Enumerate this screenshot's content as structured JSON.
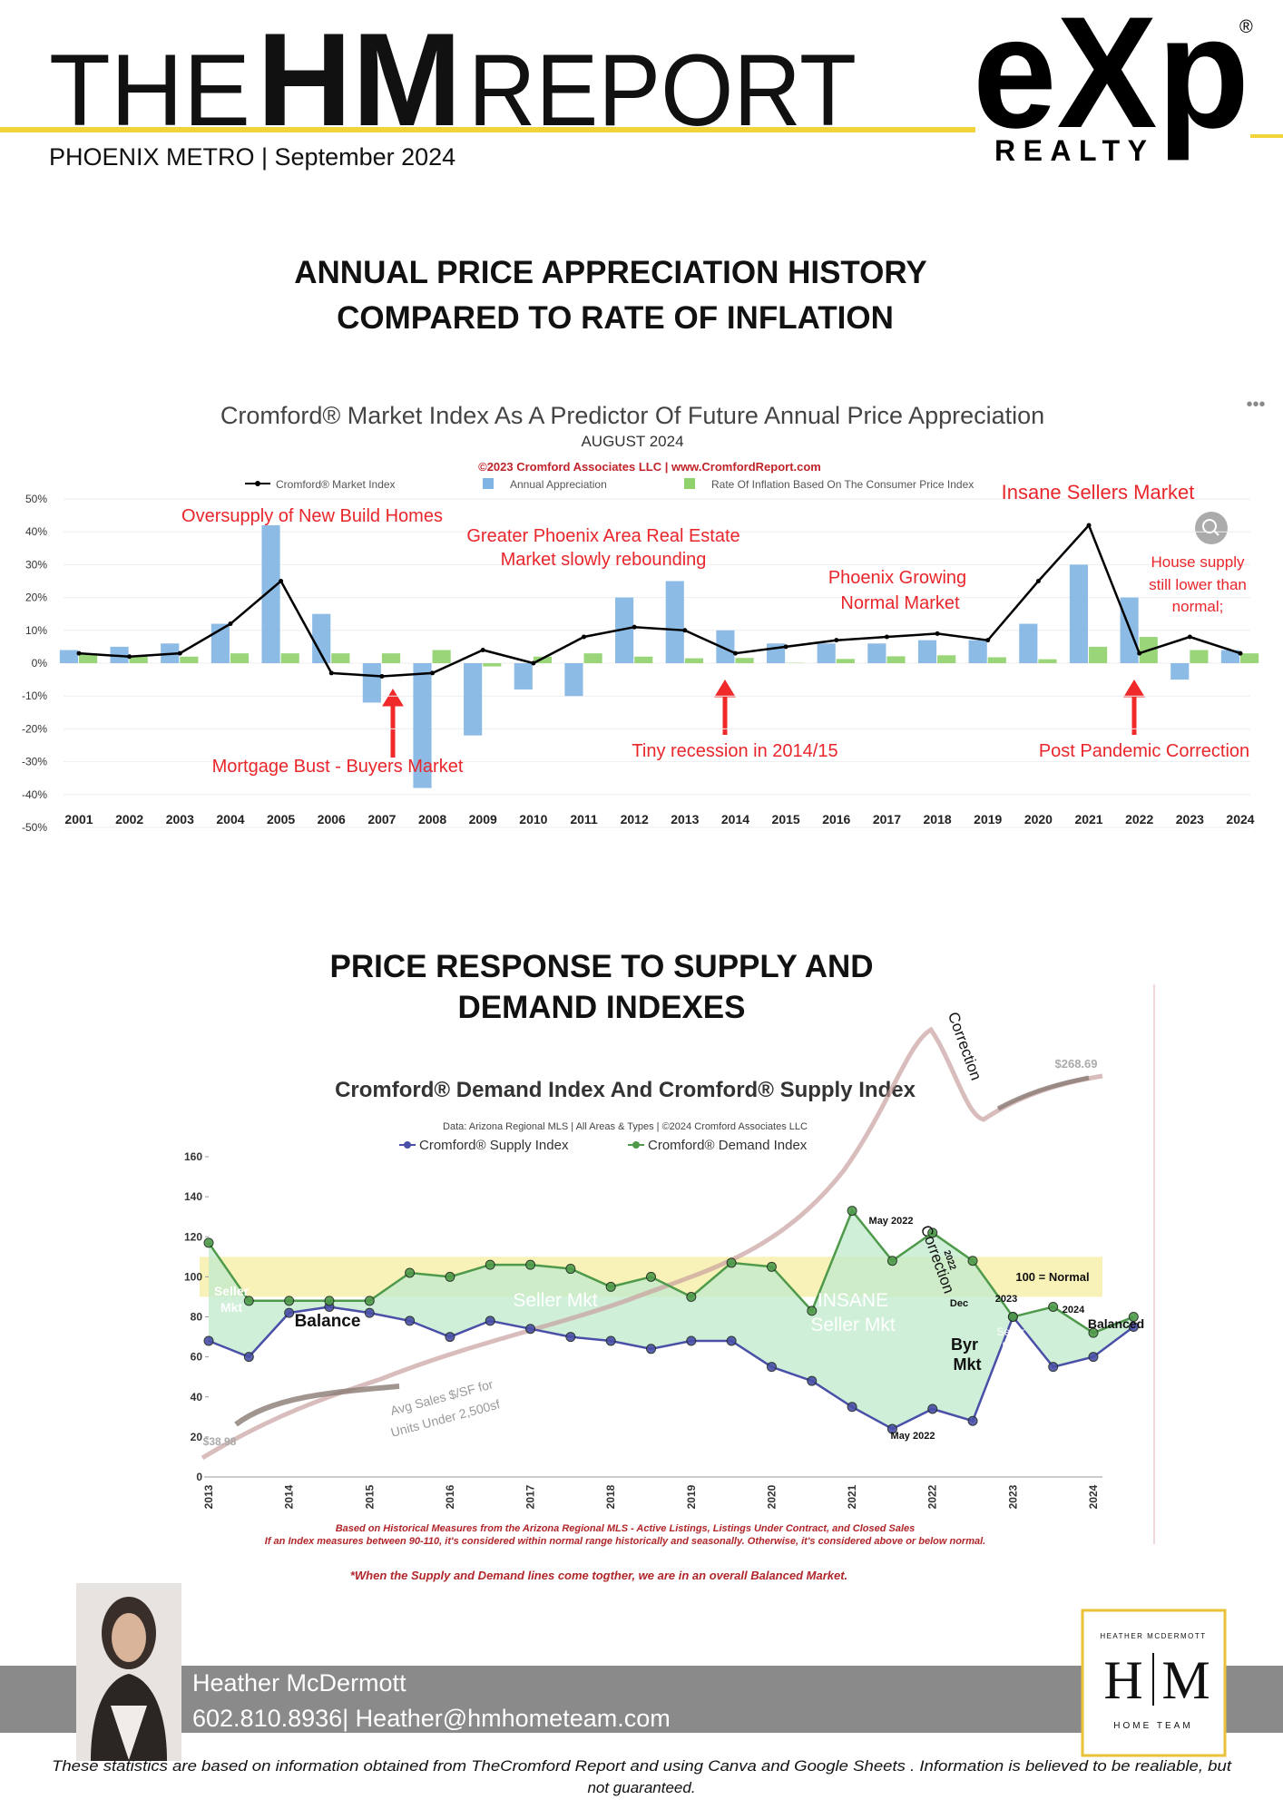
{
  "header": {
    "title_left": "THE",
    "title_bold": "HM",
    "title_right": "REPORT",
    "subtitle": "PHOENIX METRO | September 2024",
    "logo": "eXp",
    "logo_registered": "®",
    "logo_sub": "REALTY"
  },
  "section1": {
    "heading": [
      "ANNUAL PRICE APPRECIATION HISTORY",
      "COMPARED TO RATE OF INFLATION"
    ]
  },
  "section2": {
    "heading": [
      "PRICE RESPONSE TO SUPPLY AND",
      "DEMAND INDEXES"
    ]
  },
  "chart_data": [
    {
      "type": "combo",
      "title": "Cromford® Market Index As A Predictor Of Future Annual Price Appreciation",
      "subtitle": "AUGUST 2024",
      "source": "©2023 Cromford Associates LLC | www.CromfordReport.com",
      "categories": [
        "2001",
        "2002",
        "2003",
        "2004",
        "2005",
        "2006",
        "2007",
        "2008",
        "2009",
        "2010",
        "2011",
        "2012",
        "2013",
        "2014",
        "2015",
        "2016",
        "2017",
        "2018",
        "2019",
        "2020",
        "2021",
        "2022",
        "2023",
        "2024"
      ],
      "series": [
        {
          "name": "Cromford® Market Index",
          "color": "#000000",
          "type": "line",
          "values": [
            3,
            2,
            3,
            12,
            25,
            -3,
            -4,
            -3,
            4,
            0,
            8,
            11,
            10,
            3,
            5,
            7,
            8,
            9,
            7,
            25,
            42,
            3,
            8,
            3
          ]
        },
        {
          "name": "Annual Appreciation",
          "color": "#80b4e2",
          "type": "bar",
          "values": [
            4,
            5,
            6,
            12,
            42,
            15,
            -12,
            -38,
            -22,
            -8,
            -10,
            20,
            25,
            10,
            6,
            6,
            6,
            7,
            7,
            12,
            30,
            20,
            -5,
            4
          ]
        },
        {
          "name": "Rate Of Inflation Based On The Consumer Price Index",
          "color": "#8fd16a",
          "type": "bar",
          "values": [
            3,
            2,
            2,
            3,
            3,
            3,
            3,
            4,
            -1,
            2,
            3,
            2,
            1.5,
            1.6,
            0.1,
            1.3,
            2.1,
            2.4,
            1.8,
            1.2,
            5,
            8,
            4,
            3
          ]
        }
      ],
      "ylim": [
        -50,
        50
      ],
      "yticks": [
        {
          "value": -50,
          "label": "-50%"
        },
        {
          "value": -40,
          "label": "-40%"
        },
        {
          "value": -30,
          "label": "-30%"
        },
        {
          "value": -20,
          "label": "-20%"
        },
        {
          "value": -10,
          "label": "-10%"
        },
        {
          "value": 0,
          "label": "0%"
        },
        {
          "value": 10,
          "label": "10%"
        },
        {
          "value": 20,
          "label": "20%"
        },
        {
          "value": 30,
          "label": "30%"
        },
        {
          "value": 40,
          "label": "40%"
        },
        {
          "value": 50,
          "label": "50%"
        }
      ],
      "grid": true,
      "annotations": [
        "Insane Sellers Market",
        "Oversupply of New Build Homes",
        "Greater Phoenix Area Real Estate",
        "Market slowly rebounding",
        "Phoenix Growing",
        "Normal Market",
        "House supply",
        "still lower than",
        "normal;",
        "Mortgage Bust - Buyers Market",
        "Tiny recession in 2014/15",
        "Post Pandemic Correction"
      ]
    },
    {
      "type": "line",
      "title": "Cromford® Demand Index And Cromford® Supply Index",
      "source": "Data: Arizona Regional MLS | All Areas & Types | ©2024 Cromford Associates LLC",
      "categories": [
        "2013",
        null,
        "2014",
        null,
        "2015",
        null,
        "2016",
        null,
        "2017",
        null,
        "2018",
        null,
        "2019",
        null,
        "2020",
        null,
        "2021",
        null,
        "2022",
        null,
        "2023",
        null,
        "2024",
        null
      ],
      "series": [
        {
          "name": "Cromford® Supply Index",
          "color": "#4a4fa8",
          "values": [
            68,
            60,
            82,
            85,
            82,
            78,
            70,
            78,
            74,
            70,
            68,
            64,
            68,
            68,
            55,
            48,
            35,
            24,
            34,
            28,
            80,
            55,
            60,
            75
          ]
        },
        {
          "name": "Cromford® Demand Index",
          "color": "#4e9a4a",
          "values": [
            117,
            88,
            88,
            88,
            88,
            102,
            100,
            106,
            106,
            104,
            95,
            100,
            90,
            107,
            105,
            83,
            133,
            108,
            122,
            108,
            80,
            85,
            72,
            80
          ]
        }
      ],
      "ylim": [
        0,
        160
      ],
      "yticks": [
        0,
        20,
        40,
        60,
        80,
        100,
        120,
        140,
        160
      ],
      "normal_range": [
        90,
        110
      ],
      "annotations": [
        "Seller",
        "Mkt",
        "Balance",
        "Seller Mkt",
        "INSANE",
        "Seller Mkt",
        "May 2022",
        "May 2022",
        "Correction",
        "Correction",
        "2022",
        "Dec",
        "Byr",
        "Mkt",
        "Seller",
        "Mkt",
        "2023",
        "2024",
        "Balanced",
        "100 = Normal",
        "Avg Sales $/SF for",
        "Units Under 2,500sf",
        "$268.69",
        "$38.98"
      ],
      "notes": [
        "Based on Historical Measures from the Arizona Regional MLS - Active Listings, Listings Under Contract, and Closed Sales",
        "If an Index measures between 90-110, it's considered within normal range historically and seasonally. Otherwise, it's considered above or below normal.",
        "*When the Supply and Demand lines come togther, we are in an overall Balanced Market."
      ]
    }
  ],
  "footer": {
    "name": "Heather McDermott",
    "contact": "602.810.8936| Heather@hmhometeam.com",
    "logo_top": "HEATHER MCDERMOTT",
    "logo_letters": [
      "H",
      "M"
    ],
    "logo_bottom": "HOME TEAM",
    "disclaimer": [
      "These statistics are based on information obtained from TheCromford Report and using Canva and Google Sheets . Information is believed to be realiable, but",
      "not guaranteed."
    ]
  }
}
